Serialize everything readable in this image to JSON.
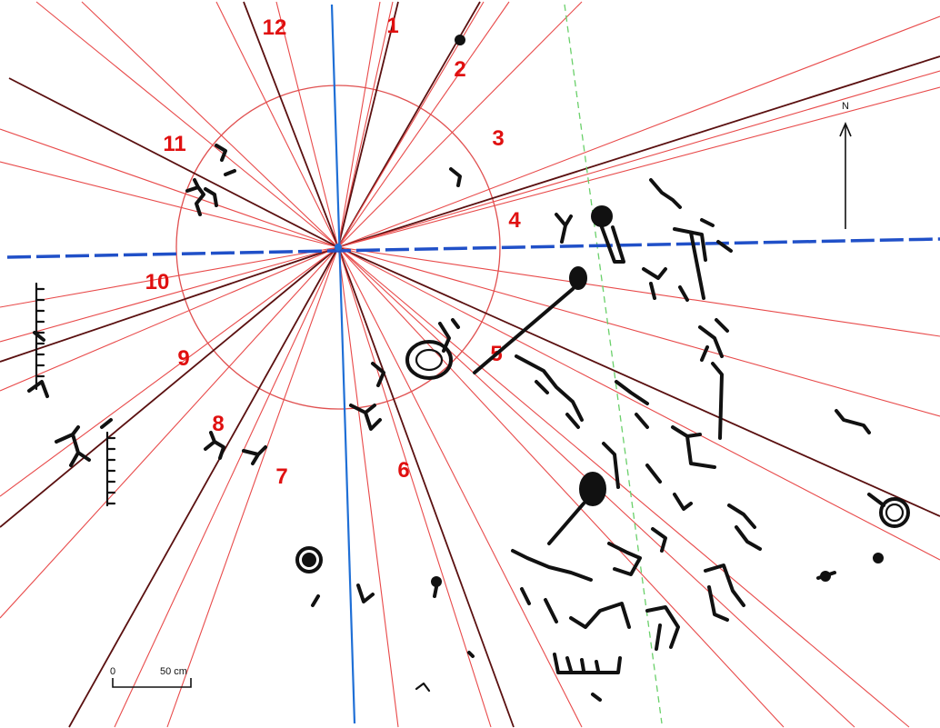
{
  "hour_labels": [
    "1",
    "2",
    "3",
    "4",
    "5",
    "6",
    "7",
    "8",
    "9",
    "10",
    "11",
    "12"
  ],
  "north_label": "N",
  "scale_bar": {
    "start_label": "0",
    "end_label": "50 cm"
  },
  "colors": {
    "sight_line": "#e84a4a",
    "dark_line": "#5a1010",
    "meridian": "#1f6fd6",
    "ecliptic_dashed": "#2050c8",
    "guide_dashed": "#6ad06a",
    "hour_circle": "#e05050",
    "hour_label": "#e01010",
    "carving": "#111111"
  }
}
